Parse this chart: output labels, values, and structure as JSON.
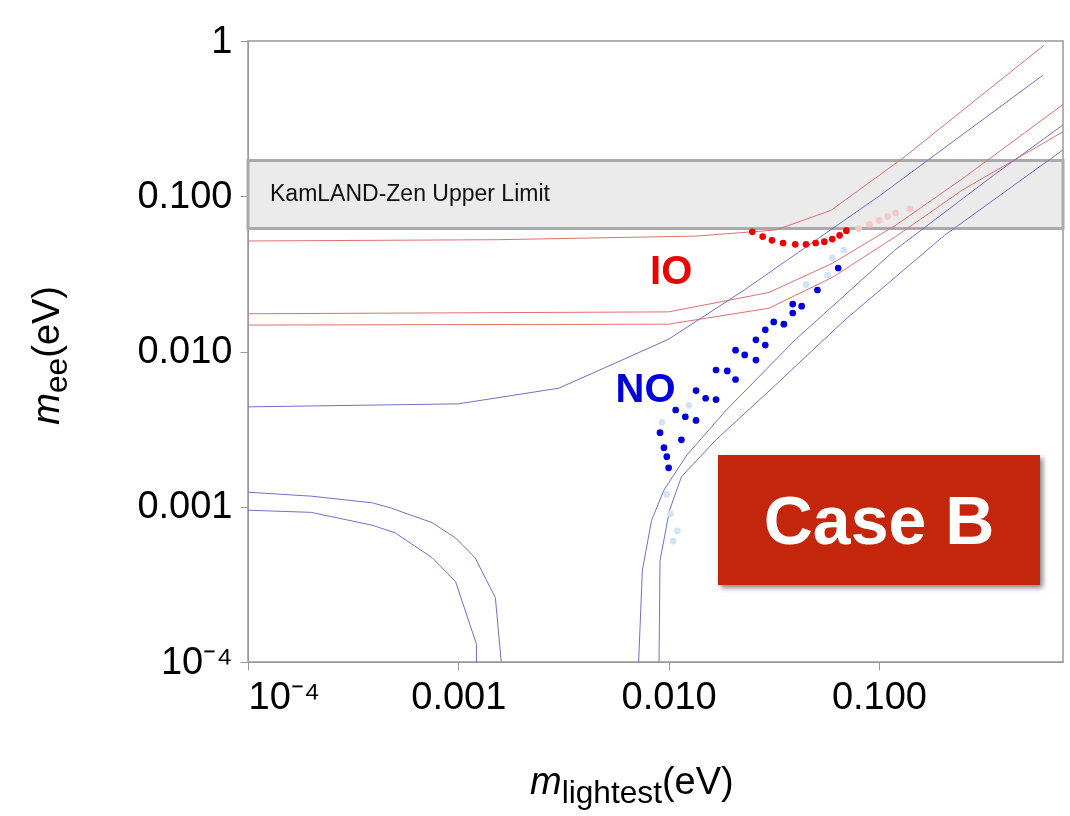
{
  "chart_data": {
    "type": "scatter",
    "xlabel": "m$_{lightest}$(eV)",
    "ylabel": "m$_{ee}$(eV)",
    "log": "xy",
    "marker": "circle",
    "line_style": "solid",
    "grid": false,
    "xlim": [
      0.0001,
      0.75
    ],
    "ylim": [
      0.0001,
      1
    ],
    "xticks": [
      {
        "value": 0.0001,
        "label": "10⁻⁴"
      },
      0.001,
      {
        "value": 0.01,
        "label": "0.010"
      },
      {
        "value": 0.1,
        "label": "0.100"
      }
    ],
    "yticks": [
      {
        "value": 0.0001,
        "label": "10⁻⁴"
      },
      0.001,
      {
        "value": 0.01,
        "label": "0.010"
      },
      {
        "value": 0.1,
        "label": "0.100"
      },
      1
    ],
    "bands": [
      {
        "axis": "y",
        "from": 0.062,
        "to": 0.17,
        "label": "KamLAND-Zen Upper Limit",
        "color": "#e8e8e8"
      }
    ],
    "series": [
      {
        "type": "line",
        "marker": "none",
        "color": "#e07070",
        "x": [
          0.0001,
          0.00155,
          0.0135,
          0.0323,
          0.059,
          0.13,
          0.61
        ],
        "values": [
          0.0515,
          0.0525,
          0.0554,
          0.0606,
          0.081,
          0.176,
          0.94
        ]
      },
      {
        "type": "line",
        "marker": "none",
        "color": "#e07070",
        "x": [
          0.0001,
          0.01,
          0.03,
          0.06,
          0.12,
          0.25,
          0.75
        ],
        "values": [
          0.0175,
          0.018,
          0.024,
          0.037,
          0.065,
          0.13,
          0.39
        ]
      },
      {
        "type": "line",
        "marker": "none",
        "color": "#e07070",
        "x": [
          0.0001,
          0.01,
          0.03,
          0.06,
          0.12,
          0.25,
          0.75
        ],
        "values": [
          0.0148,
          0.015,
          0.019,
          0.03,
          0.055,
          0.11,
          0.26
        ]
      },
      {
        "type": "line",
        "marker": "none",
        "color": "#7070cc",
        "x": [
          0.0001,
          0.001,
          0.003,
          0.0046,
          0.01,
          0.023,
          0.052,
          0.1,
          0.6
        ],
        "values": [
          0.0044,
          0.0046,
          0.0058,
          0.0075,
          0.012,
          0.025,
          0.054,
          0.1,
          0.6
        ]
      },
      {
        "type": "line",
        "marker": "none",
        "color": "#7070cc",
        "x": [
          0.0072,
          0.0075,
          0.0083,
          0.0095,
          0.0122,
          0.0188,
          0.04,
          0.119,
          0.352,
          0.75
        ],
        "values": [
          0.0001,
          0.00039,
          0.00082,
          0.00128,
          0.00215,
          0.0042,
          0.0119,
          0.045,
          0.137,
          0.288
        ]
      },
      {
        "type": "line",
        "marker": "none",
        "color": "#7070cc",
        "x": [
          0.009,
          0.0091,
          0.0101,
          0.0115,
          0.0168,
          0.0323,
          0.069,
          0.205,
          0.75
        ],
        "values": [
          0.0001,
          0.00045,
          0.00095,
          0.00156,
          0.0027,
          0.0061,
          0.016,
          0.056,
          0.199
        ]
      },
      {
        "type": "line",
        "marker": "none",
        "color": "#7070cc",
        "x": [
          0.0001,
          0.0002,
          0.00039,
          0.00048,
          0.00075,
          0.00097,
          0.0012,
          0.0015,
          0.0016
        ],
        "values": [
          0.00124,
          0.00117,
          0.00106,
          0.00098,
          0.00079,
          0.00063,
          0.00047,
          0.00026,
          0.0001
        ]
      },
      {
        "type": "line",
        "marker": "none",
        "color": "#7070cc",
        "x": [
          0.0001,
          0.0002,
          0.00039,
          0.0005,
          0.00075,
          0.00097,
          0.00122,
          0.00122
        ],
        "values": [
          0.00095,
          0.00092,
          0.00076,
          0.00068,
          0.00047,
          0.00033,
          0.00013,
          0.0001
        ]
      },
      {
        "color": "#cfe4f5",
        "x": [
          0.0098,
          0.0102,
          0.011,
          0.0105,
          0.0093,
          0.0125,
          0.045,
          0.057,
          0.06,
          0.068
        ],
        "values": [
          0.0012,
          0.0009,
          0.0007,
          0.0006,
          0.0035,
          0.0045,
          0.027,
          0.031,
          0.04,
          0.045
        ]
      },
      {
        "color": "#f5c8c8",
        "x": [
          0.08,
          0.09,
          0.1,
          0.11,
          0.12,
          0.14
        ],
        "values": [
          0.062,
          0.066,
          0.07,
          0.074,
          0.078,
          0.083
        ]
      },
      {
        "name": "IO",
        "color": "#ee0000",
        "x": [
          0.025,
          0.028,
          0.031,
          0.035,
          0.04,
          0.045,
          0.05,
          0.055,
          0.06,
          0.065,
          0.07
        ],
        "values": [
          0.059,
          0.055,
          0.052,
          0.05,
          0.049,
          0.049,
          0.05,
          0.051,
          0.053,
          0.056,
          0.06
        ]
      },
      {
        "name": "NO",
        "color": "#0000dd",
        "x": [
          0.0208,
          0.0091,
          0.0095,
          0.01,
          0.0098,
          0.0108,
          0.0115,
          0.0135,
          0.0135,
          0.0168,
          0.0168,
          0.0208,
          0.026,
          0.026,
          0.0288,
          0.0288,
          0.0316,
          0.0353,
          0.0389,
          0.0429,
          0.0389,
          0.051,
          0.064,
          0.012,
          0.015,
          0.019,
          0.023
        ],
        "values": [
          0.0102,
          0.003,
          0.0024,
          0.00178,
          0.0021,
          0.0042,
          0.0027,
          0.0056,
          0.0036,
          0.0076,
          0.0049,
          0.0066,
          0.0119,
          0.0088,
          0.0138,
          0.011,
          0.0155,
          0.015,
          0.0202,
          0.0196,
          0.0177,
          0.0249,
          0.0345,
          0.0038,
          0.005,
          0.0075,
          0.0095
        ]
      }
    ],
    "annotations": [
      "Case B"
    ]
  }
}
